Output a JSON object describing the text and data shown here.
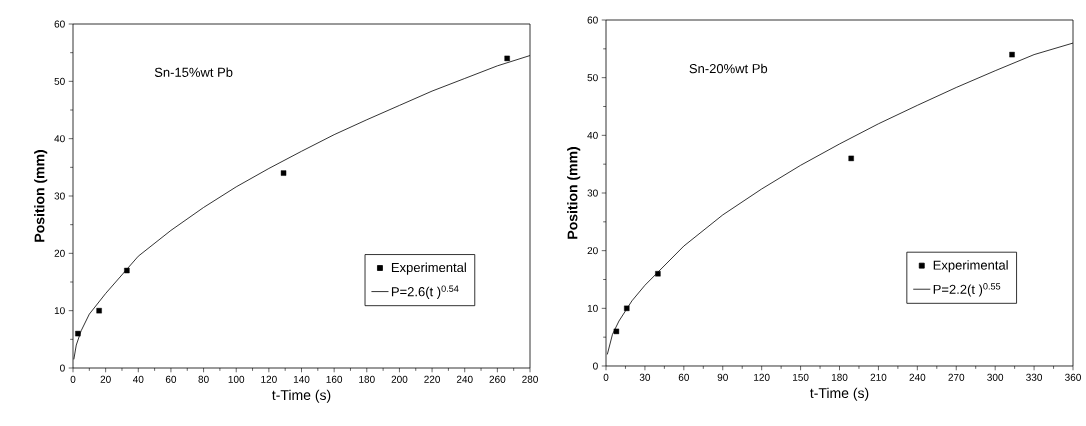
{
  "chart_data": [
    {
      "type": "scatter",
      "xlabel": "t-Time (s)",
      "ylabel": "Position (mm)",
      "annotations": [
        "Sn-15%wt Pb"
      ],
      "xlim": [
        0,
        280
      ],
      "xticks": [
        0,
        20,
        40,
        60,
        80,
        100,
        120,
        140,
        160,
        180,
        200,
        220,
        240,
        260,
        280
      ],
      "ylim": [
        0,
        60
      ],
      "yticks": [
        0,
        10,
        20,
        30,
        40,
        50,
        60
      ],
      "legend": "bottom right",
      "grid": false,
      "series": [
        {
          "name": "Experimental",
          "marker": "square",
          "color": "#000000",
          "x": [
            3,
            16,
            33,
            129,
            266
          ],
          "values": [
            6,
            10,
            17,
            34,
            54
          ]
        },
        {
          "name": "P=2.6(t )$^{0.54}$",
          "type": "line",
          "marker": "none",
          "color": "#000000",
          "x": [
            0.5,
            2,
            5,
            10,
            20,
            40,
            60,
            80,
            100,
            120,
            140,
            160,
            180,
            200,
            220,
            240,
            260,
            280
          ],
          "values": [
            1.5,
            4,
            6.5,
            9.4,
            13,
            19.5,
            24,
            28,
            31.6,
            34.8,
            37.8,
            40.7,
            43.3,
            45.8,
            48.3,
            50.5,
            52.7,
            54.5
          ]
        }
      ]
    },
    {
      "type": "scatter",
      "xlabel": "t-Time (s)",
      "ylabel": "Position (mm)",
      "annotations": [
        "Sn-20%wt Pb"
      ],
      "xlim": [
        0,
        360
      ],
      "xticks": [
        0,
        30,
        60,
        90,
        120,
        150,
        180,
        210,
        240,
        270,
        300,
        330,
        360
      ],
      "ylim": [
        0,
        60
      ],
      "yticks": [
        0,
        10,
        20,
        30,
        40,
        50,
        60
      ],
      "legend": "bottom right",
      "grid": false,
      "series": [
        {
          "name": "Experimental",
          "marker": "square",
          "color": "#000000",
          "x": [
            8,
            16,
            40,
            189,
            313
          ],
          "values": [
            6,
            10,
            16,
            36,
            54
          ]
        },
        {
          "name": "P=2.2(t )$^{0.55}$",
          "type": "line",
          "marker": "none",
          "color": "#000000",
          "x": [
            1,
            5,
            10,
            20,
            30,
            60,
            90,
            120,
            150,
            180,
            210,
            240,
            270,
            300,
            330,
            360
          ],
          "values": [
            2,
            5.5,
            7.8,
            11.3,
            14,
            20.8,
            26.2,
            30.7,
            34.8,
            38.5,
            42,
            45.2,
            48.3,
            51.2,
            54,
            56
          ]
        }
      ]
    }
  ]
}
